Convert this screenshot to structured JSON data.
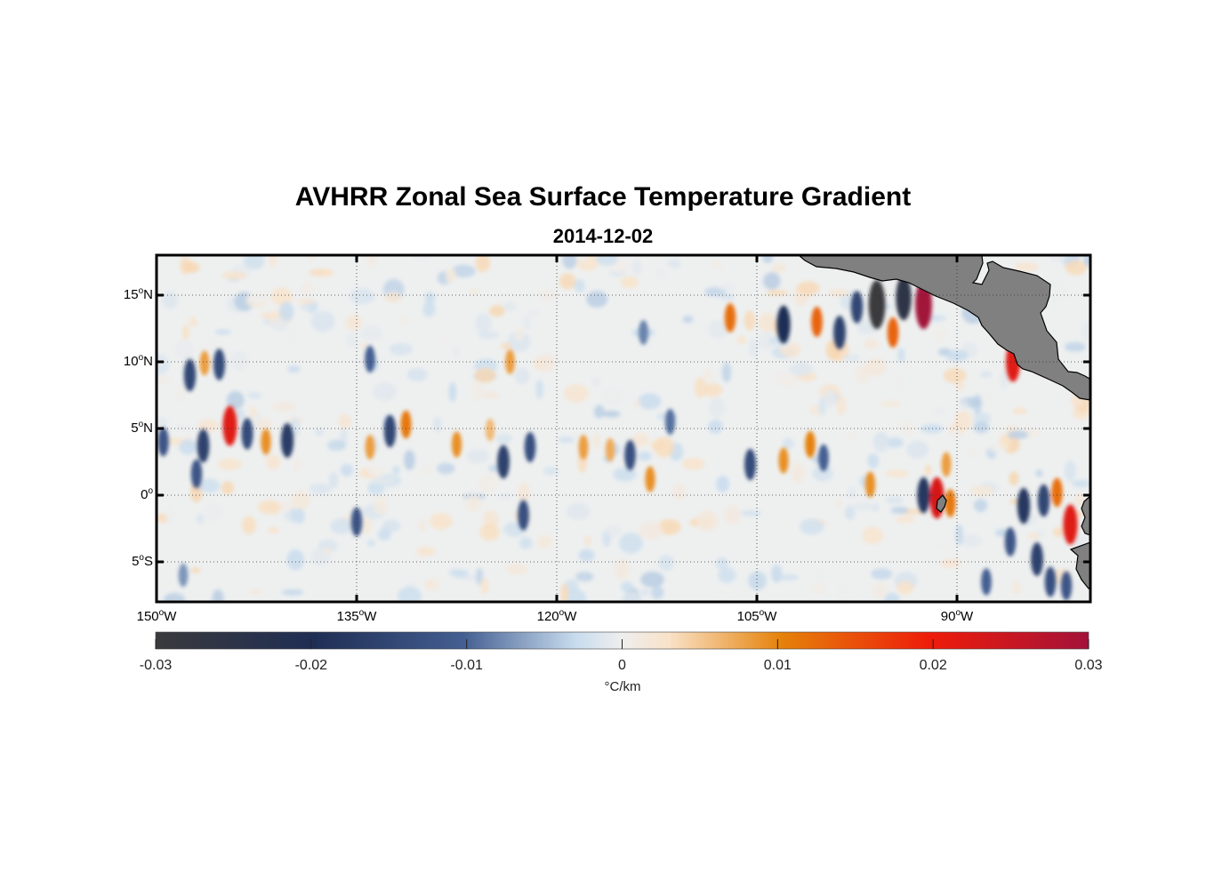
{
  "title": "AVHRR Zonal Sea Surface Temperature Gradient",
  "subtitle": "2014-12-02",
  "chart_data": {
    "type": "heatmap",
    "title": "AVHRR Zonal Sea Surface Temperature Gradient",
    "subtitle": "2014-12-02",
    "lon_range": [
      -150,
      -80
    ],
    "lat_range": [
      -8,
      18
    ],
    "x_ticks": [
      {
        "value": -150,
        "label": "150",
        "suffix": "W"
      },
      {
        "value": -135,
        "label": "135",
        "suffix": "W"
      },
      {
        "value": -120,
        "label": "120",
        "suffix": "W"
      },
      {
        "value": -105,
        "label": "105",
        "suffix": "W"
      },
      {
        "value": -90,
        "label": "90",
        "suffix": "W"
      }
    ],
    "y_ticks": [
      {
        "value": 15,
        "label": "15",
        "suffix": "N"
      },
      {
        "value": 10,
        "label": "10",
        "suffix": "N"
      },
      {
        "value": 5,
        "label": "5",
        "suffix": "N"
      },
      {
        "value": 0,
        "label": "0",
        "suffix": ""
      },
      {
        "value": -5,
        "label": "5",
        "suffix": "S"
      }
    ],
    "colorbar": {
      "range": [
        -0.03,
        0.03
      ],
      "ticks": [
        -0.03,
        -0.02,
        -0.01,
        0,
        0.01,
        0.02,
        0.03
      ],
      "tick_labels": [
        "-0.03",
        "-0.02",
        "-0.01",
        "0",
        "0.01",
        "0.02",
        "0.03"
      ],
      "units": "°C/km"
    },
    "features": [
      {
        "name": "blob-1",
        "lon": -147.5,
        "lat": 9.0,
        "value": -0.015
      },
      {
        "name": "blob-2",
        "lon": -145.3,
        "lat": 9.8,
        "value": -0.014
      },
      {
        "name": "blob-3",
        "lon": -146.4,
        "lat": 9.9,
        "value": 0.008
      },
      {
        "name": "blob-4",
        "lon": -144.5,
        "lat": 5.2,
        "value": 0.022
      },
      {
        "name": "blob-5",
        "lon": -146.5,
        "lat": 3.7,
        "value": -0.016
      },
      {
        "name": "blob-6",
        "lon": -143.2,
        "lat": 4.6,
        "value": -0.014
      },
      {
        "name": "blob-7",
        "lon": -141.8,
        "lat": 4.0,
        "value": 0.009
      },
      {
        "name": "blob-8",
        "lon": -140.2,
        "lat": 4.1,
        "value": -0.017
      },
      {
        "name": "blob-9",
        "lon": -149.5,
        "lat": 4.0,
        "value": -0.012
      },
      {
        "name": "blob-10",
        "lon": -147.0,
        "lat": 1.6,
        "value": -0.012
      },
      {
        "name": "blob-11",
        "lon": -132.5,
        "lat": 4.8,
        "value": -0.015
      },
      {
        "name": "blob-12",
        "lon": -131.3,
        "lat": 5.3,
        "value": 0.011
      },
      {
        "name": "blob-13",
        "lon": -134.0,
        "lat": 3.6,
        "value": 0.008
      },
      {
        "name": "blob-14",
        "lon": -127.5,
        "lat": 3.8,
        "value": 0.009
      },
      {
        "name": "blob-15",
        "lon": -124.0,
        "lat": 2.5,
        "value": -0.016
      },
      {
        "name": "blob-16",
        "lon": -122.0,
        "lat": 3.6,
        "value": -0.013
      },
      {
        "name": "blob-17",
        "lon": -125.0,
        "lat": 4.9,
        "value": 0.006
      },
      {
        "name": "blob-18",
        "lon": -135.0,
        "lat": -2.0,
        "value": -0.012
      },
      {
        "name": "blob-19",
        "lon": -122.5,
        "lat": -1.5,
        "value": -0.013
      },
      {
        "name": "blob-20",
        "lon": -134.0,
        "lat": 10.2,
        "value": -0.01
      },
      {
        "name": "blob-21",
        "lon": -123.5,
        "lat": 10.0,
        "value": 0.008
      },
      {
        "name": "blob-22",
        "lon": -113.5,
        "lat": 12.2,
        "value": -0.008
      },
      {
        "name": "blob-23",
        "lon": -118.0,
        "lat": 3.6,
        "value": 0.008
      },
      {
        "name": "blob-24",
        "lon": -116.0,
        "lat": 3.4,
        "value": 0.007
      },
      {
        "name": "blob-25",
        "lon": -114.5,
        "lat": 3.0,
        "value": -0.013
      },
      {
        "name": "blob-26",
        "lon": -113.0,
        "lat": 1.2,
        "value": 0.009
      },
      {
        "name": "blob-27",
        "lon": -111.5,
        "lat": 5.5,
        "value": -0.009
      },
      {
        "name": "blob-28",
        "lon": -105.5,
        "lat": 2.3,
        "value": -0.014
      },
      {
        "name": "blob-29",
        "lon": -103.0,
        "lat": 2.6,
        "value": 0.009
      },
      {
        "name": "blob-30",
        "lon": -101.0,
        "lat": 3.8,
        "value": 0.01
      },
      {
        "name": "blob-31",
        "lon": -100.0,
        "lat": 2.8,
        "value": -0.01
      },
      {
        "name": "blob-32",
        "lon": -96.5,
        "lat": 0.8,
        "value": 0.009
      },
      {
        "name": "blob-33",
        "lon": -107.0,
        "lat": 13.3,
        "value": 0.012
      },
      {
        "name": "blob-34",
        "lon": -103.0,
        "lat": 12.8,
        "value": -0.02
      },
      {
        "name": "blob-35",
        "lon": -100.5,
        "lat": 13.0,
        "value": 0.013
      },
      {
        "name": "blob-36",
        "lon": -98.8,
        "lat": 12.2,
        "value": -0.016
      },
      {
        "name": "blob-37",
        "lon": -97.5,
        "lat": 14.1,
        "value": -0.015
      },
      {
        "name": "blob-38",
        "lon": -96.0,
        "lat": 14.3,
        "value": -0.03
      },
      {
        "name": "blob-39",
        "lon": -94.8,
        "lat": 12.2,
        "value": 0.013
      },
      {
        "name": "blob-40",
        "lon": -94.0,
        "lat": 14.8,
        "value": -0.026
      },
      {
        "name": "blob-41",
        "lon": -92.5,
        "lat": 14.3,
        "value": 0.03
      },
      {
        "name": "blob-42",
        "lon": -85.8,
        "lat": 10.0,
        "value": 0.022
      },
      {
        "name": "blob-43",
        "lon": -91.5,
        "lat": -0.2,
        "value": 0.023
      },
      {
        "name": "blob-44",
        "lon": -90.5,
        "lat": -0.6,
        "value": 0.011
      },
      {
        "name": "blob-45",
        "lon": -92.5,
        "lat": 0.0,
        "value": -0.018
      },
      {
        "name": "blob-46",
        "lon": -90.8,
        "lat": 2.3,
        "value": 0.008
      },
      {
        "name": "blob-47",
        "lon": -85.0,
        "lat": -0.8,
        "value": -0.018
      },
      {
        "name": "blob-48",
        "lon": -83.5,
        "lat": -0.4,
        "value": -0.015
      },
      {
        "name": "blob-49",
        "lon": -81.5,
        "lat": -2.2,
        "value": 0.022
      },
      {
        "name": "blob-50",
        "lon": -82.5,
        "lat": 0.2,
        "value": 0.012
      },
      {
        "name": "blob-51",
        "lon": -84.0,
        "lat": -4.8,
        "value": -0.016
      },
      {
        "name": "blob-52",
        "lon": -86.0,
        "lat": -3.5,
        "value": -0.012
      },
      {
        "name": "blob-53",
        "lon": -83.0,
        "lat": -6.5,
        "value": -0.013
      },
      {
        "name": "blob-54",
        "lon": -81.8,
        "lat": -6.8,
        "value": -0.012
      },
      {
        "name": "blob-55",
        "lon": -87.8,
        "lat": -6.5,
        "value": -0.01
      },
      {
        "name": "blob-56",
        "lon": -148.0,
        "lat": -6.0,
        "value": -0.007
      }
    ]
  },
  "colors": {
    "land": "#808080",
    "coast": "#000000",
    "frame": "#000000"
  }
}
